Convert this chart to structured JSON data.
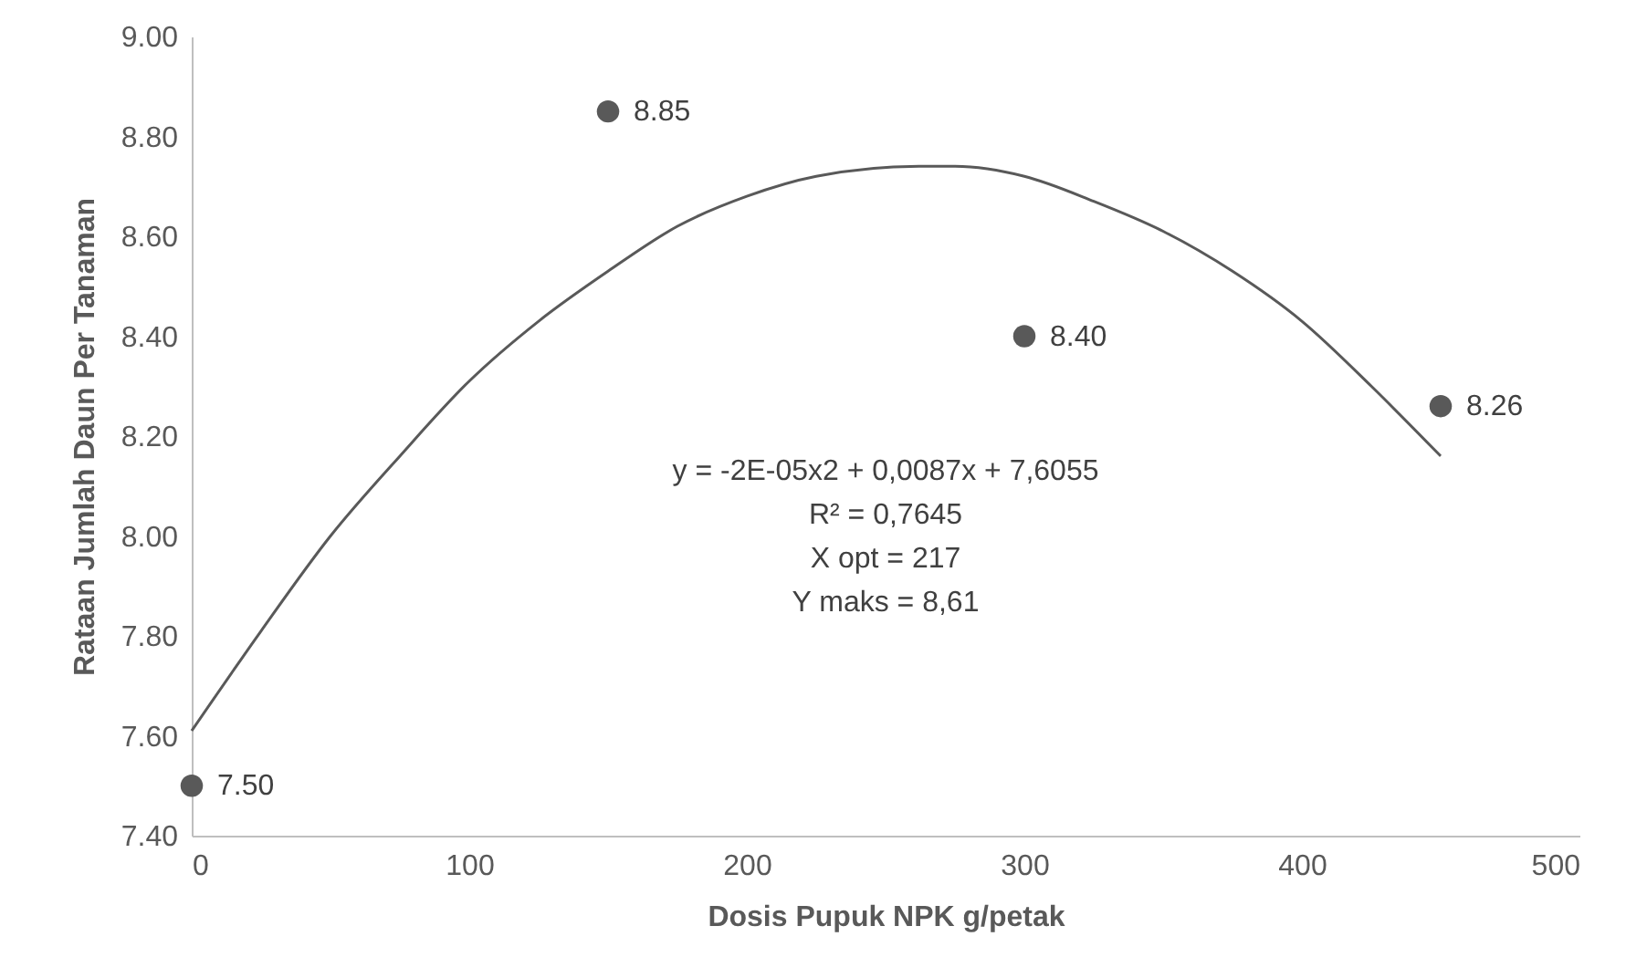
{
  "chart_data": {
    "type": "scatter",
    "xlabel": "Dosis Pupuk NPK g/petak",
    "ylabel": "Rataan Jumlah Daun Per Tanaman",
    "x": [
      0,
      150,
      300,
      450
    ],
    "series": [
      {
        "color": "#595959",
        "marker": "circle",
        "values": [
          7.5,
          8.85,
          8.4,
          8.26
        ],
        "value_labels": [
          "7.50",
          "8.85",
          "8.40",
          "8.26"
        ]
      },
      {
        "type": "line",
        "color": "#595959",
        "marker": "none",
        "line_style": "solid",
        "x": [
          0,
          25,
          50,
          75,
          100,
          125,
          150,
          175,
          200,
          225,
          262,
          275,
          300,
          325,
          350,
          375,
          400,
          425,
          450
        ],
        "values": [
          7.61,
          7.81,
          8.0,
          8.16,
          8.31,
          8.43,
          8.53,
          8.62,
          8.68,
          8.72,
          8.74,
          8.74,
          8.72,
          8.67,
          8.61,
          8.53,
          8.43,
          8.3,
          8.16
        ]
      }
    ],
    "xlim": [
      0,
      500
    ],
    "xticks": [
      0,
      100,
      200,
      300,
      400,
      500
    ],
    "ylim": [
      7.4,
      9.0
    ],
    "yticks": [
      {
        "value": 7.4,
        "label": "7.40"
      },
      {
        "value": 7.6,
        "label": "7.60"
      },
      {
        "value": 7.8,
        "label": "7.80"
      },
      {
        "value": 8.0,
        "label": "8.00"
      },
      {
        "value": 8.2,
        "label": "8.20"
      },
      {
        "value": 8.4,
        "label": "8.40"
      },
      {
        "value": 8.6,
        "label": "8.60"
      },
      {
        "value": 8.8,
        "label": "8.80"
      },
      {
        "value": 9.0,
        "label": "9.00"
      }
    ],
    "grid": false,
    "annotations": [
      "y = -2E-05x2 + 0,0087x + 7,6055",
      "R² = 0,7645",
      "X opt = 217",
      "Y maks = 8,61"
    ]
  }
}
